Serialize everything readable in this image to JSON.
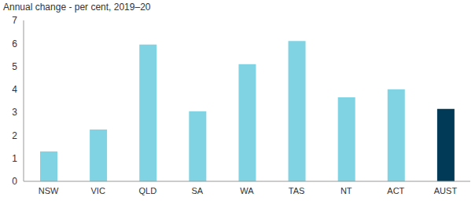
{
  "chart_data": {
    "type": "bar",
    "title": "Annual change - per cent, 2019–20",
    "categories": [
      "NSW",
      "VIC",
      "QLD",
      "SA",
      "WA",
      "TAS",
      "NT",
      "ACT",
      "AUST"
    ],
    "values": [
      1.3,
      2.25,
      5.95,
      3.05,
      5.1,
      6.1,
      3.65,
      4.0,
      3.15
    ],
    "colors": [
      "#7fd3e3",
      "#7fd3e3",
      "#7fd3e3",
      "#7fd3e3",
      "#7fd3e3",
      "#7fd3e3",
      "#7fd3e3",
      "#7fd3e3",
      "#003a57"
    ],
    "ylim": [
      0,
      7
    ],
    "yticks": [
      0,
      1,
      2,
      3,
      4,
      5,
      6,
      7
    ],
    "grid": false
  }
}
